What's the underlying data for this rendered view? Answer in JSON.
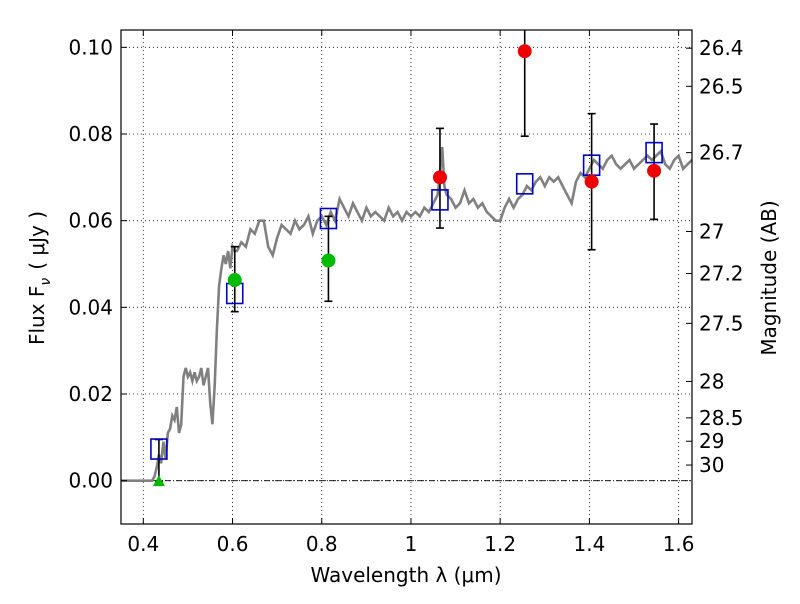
{
  "chart_data": {
    "type": "scatter",
    "xlabel": "Wavelength  λ (μm)",
    "ylabel": "Flux  F",
    "ylabel_sub": "ν",
    "ylabel_unit": "( μJy )",
    "y2label": "Magnitude (AB)",
    "xlim": [
      0.35,
      1.63
    ],
    "ylim": [
      -0.01,
      0.104
    ],
    "grid": true,
    "x_ticks": [
      0.4,
      0.6,
      0.8,
      1.0,
      1.2,
      1.4,
      1.6
    ],
    "x_tick_labels": [
      "0.4",
      "0.6",
      "0.8",
      "1",
      "1.2",
      "1.4",
      "1.6"
    ],
    "y_ticks": [
      0.0,
      0.02,
      0.04,
      0.06,
      0.08,
      0.1
    ],
    "y_tick_labels": [
      "0.00",
      "0.02",
      "0.04",
      "0.06",
      "0.08",
      "0.10"
    ],
    "mag_ticks": [
      {
        "label": "26.4",
        "flux": 0.0998
      },
      {
        "label": "26.5",
        "flux": 0.091
      },
      {
        "label": "26.7",
        "flux": 0.0757
      },
      {
        "label": "27",
        "flux": 0.0575
      },
      {
        "label": "27.2",
        "flux": 0.0478
      },
      {
        "label": "27.5",
        "flux": 0.0363
      },
      {
        "label": "28",
        "flux": 0.0229
      },
      {
        "label": "28.5",
        "flux": 0.0145
      },
      {
        "label": "29",
        "flux": 0.0091
      },
      {
        "label": "30",
        "flux": 0.0036
      }
    ],
    "zero_line": 0.0,
    "model_spectrum": {
      "color": "#808080",
      "x": [
        0.35,
        0.42,
        0.425,
        0.43,
        0.435,
        0.44,
        0.445,
        0.45,
        0.455,
        0.46,
        0.465,
        0.47,
        0.475,
        0.48,
        0.485,
        0.49,
        0.495,
        0.5,
        0.505,
        0.51,
        0.515,
        0.52,
        0.525,
        0.53,
        0.535,
        0.54,
        0.545,
        0.55,
        0.555,
        0.56,
        0.565,
        0.57,
        0.575,
        0.58,
        0.585,
        0.59,
        0.595,
        0.6,
        0.605,
        0.61,
        0.62,
        0.63,
        0.64,
        0.65,
        0.66,
        0.67,
        0.68,
        0.69,
        0.7,
        0.71,
        0.72,
        0.73,
        0.74,
        0.75,
        0.76,
        0.77,
        0.78,
        0.79,
        0.8,
        0.81,
        0.82,
        0.83,
        0.84,
        0.85,
        0.86,
        0.87,
        0.88,
        0.89,
        0.9,
        0.91,
        0.92,
        0.93,
        0.94,
        0.95,
        0.96,
        0.97,
        0.98,
        0.99,
        1.0,
        1.01,
        1.02,
        1.03,
        1.04,
        1.05,
        1.06,
        1.065,
        1.07,
        1.075,
        1.08,
        1.09,
        1.1,
        1.11,
        1.12,
        1.13,
        1.14,
        1.15,
        1.16,
        1.17,
        1.18,
        1.19,
        1.2,
        1.21,
        1.22,
        1.23,
        1.24,
        1.25,
        1.26,
        1.27,
        1.28,
        1.29,
        1.3,
        1.31,
        1.32,
        1.33,
        1.34,
        1.35,
        1.36,
        1.37,
        1.38,
        1.39,
        1.4,
        1.41,
        1.42,
        1.43,
        1.44,
        1.45,
        1.46,
        1.47,
        1.48,
        1.49,
        1.5,
        1.51,
        1.52,
        1.53,
        1.54,
        1.55,
        1.56,
        1.57,
        1.58,
        1.59,
        1.6,
        1.61,
        1.62,
        1.63
      ],
      "y": [
        0.0,
        0.0,
        0.001,
        0.003,
        0.006,
        0.004,
        0.009,
        0.005,
        0.011,
        0.012,
        0.015,
        0.014,
        0.017,
        0.011,
        0.013,
        0.024,
        0.026,
        0.024,
        0.025,
        0.023,
        0.025,
        0.023,
        0.024,
        0.026,
        0.022,
        0.024,
        0.026,
        0.018,
        0.013,
        0.022,
        0.035,
        0.045,
        0.049,
        0.052,
        0.05,
        0.053,
        0.049,
        0.054,
        0.053,
        0.053,
        0.055,
        0.054,
        0.058,
        0.057,
        0.06,
        0.06,
        0.054,
        0.052,
        0.056,
        0.059,
        0.058,
        0.057,
        0.06,
        0.058,
        0.059,
        0.061,
        0.057,
        0.06,
        0.061,
        0.059,
        0.062,
        0.06,
        0.065,
        0.063,
        0.061,
        0.064,
        0.062,
        0.06,
        0.063,
        0.061,
        0.062,
        0.061,
        0.06,
        0.063,
        0.061,
        0.062,
        0.06,
        0.062,
        0.061,
        0.062,
        0.061,
        0.063,
        0.062,
        0.064,
        0.066,
        0.071,
        0.077,
        0.068,
        0.066,
        0.065,
        0.063,
        0.064,
        0.067,
        0.064,
        0.065,
        0.063,
        0.064,
        0.062,
        0.061,
        0.06,
        0.06,
        0.063,
        0.065,
        0.063,
        0.065,
        0.066,
        0.068,
        0.067,
        0.069,
        0.07,
        0.068,
        0.07,
        0.069,
        0.07,
        0.068,
        0.066,
        0.064,
        0.069,
        0.071,
        0.07,
        0.072,
        0.074,
        0.073,
        0.072,
        0.074,
        0.075,
        0.073,
        0.072,
        0.073,
        0.074,
        0.072,
        0.073,
        0.074,
        0.075,
        0.074,
        0.075,
        0.076,
        0.073,
        0.072,
        0.074,
        0.075,
        0.072,
        0.073,
        0.074
      ]
    },
    "series": [
      {
        "marker": "square-open",
        "color": "#0000cc",
        "x": [
          0.435,
          0.605,
          0.815,
          1.065,
          1.255,
          1.405,
          1.545
        ],
        "y": [
          0.0073,
          0.0432,
          0.0605,
          0.0648,
          0.0685,
          0.0728,
          0.0757
        ]
      },
      {
        "marker": "circle",
        "color": "#ee0000",
        "x": [
          1.065,
          1.255,
          1.405,
          1.545
        ],
        "y": [
          0.07,
          0.0991,
          0.069,
          0.0715
        ],
        "yerr_low": [
          0.0583,
          0.0795,
          0.0533,
          0.0603
        ],
        "yerr_high": [
          0.0813,
          0.1046,
          0.0847,
          0.0823
        ]
      },
      {
        "marker": "circle",
        "color": "#00bb00",
        "x": [
          0.605,
          0.815
        ],
        "y": [
          0.0463,
          0.0508
        ],
        "yerr_low": [
          0.039,
          0.0414
        ],
        "yerr_high": [
          0.054,
          0.061
        ]
      },
      {
        "marker": "triangle",
        "color": "#00bb00",
        "x": [
          0.435
        ],
        "y": [
          -0.0001
        ],
        "yerr_low": [
          -0.0001
        ],
        "yerr_high": [
          0.0095
        ]
      }
    ]
  }
}
